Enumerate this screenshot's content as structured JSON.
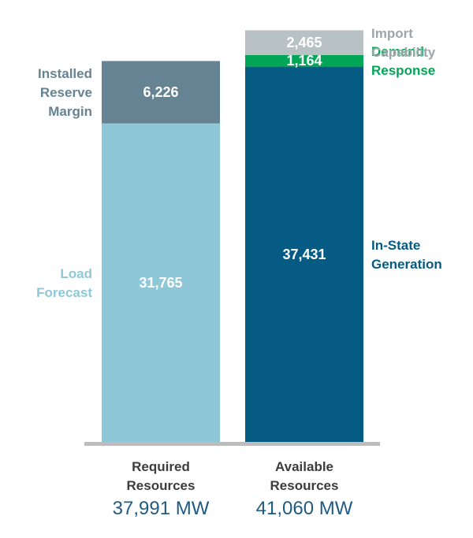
{
  "chart_data": {
    "type": "bar",
    "stacked": true,
    "ylim": [
      0,
      44000
    ],
    "grid": false,
    "categories": [
      {
        "line1": "Required",
        "line2": "Resources",
        "total": "37,991 MW"
      },
      {
        "line1": "Available",
        "line2": "Resources",
        "total": "41,060 MW"
      }
    ],
    "stacks": [
      [
        {
          "name_lines": [
            "Load",
            "Forecast"
          ],
          "value": 31765,
          "value_label": "31,765",
          "color": "#8ec8d8",
          "name_color": "#8ec8d8",
          "name_side": "left"
        },
        {
          "name_lines": [
            "Installed",
            "Reserve",
            "Margin"
          ],
          "value": 6226,
          "value_label": "6,226",
          "color": "#668393",
          "name_color": "#668393",
          "name_side": "left"
        }
      ],
      [
        {
          "name_lines": [
            "In-State",
            "Generation"
          ],
          "value": 37431,
          "value_label": "37,431",
          "color": "#055b83",
          "name_color": "#055b83",
          "name_side": "right"
        },
        {
          "name_lines": [
            "Demand",
            "Response"
          ],
          "value": 1164,
          "value_label": "1,164",
          "color": "#00a655",
          "name_color": "#00a655",
          "name_side": "right"
        },
        {
          "name_lines": [
            "Import",
            "Capability"
          ],
          "value": 2465,
          "value_label": "2,465",
          "color": "#b8c2c4",
          "name_color": "#9ea5a8",
          "name_side": "right"
        }
      ]
    ],
    "baseline_color": "#bcbcbc"
  }
}
